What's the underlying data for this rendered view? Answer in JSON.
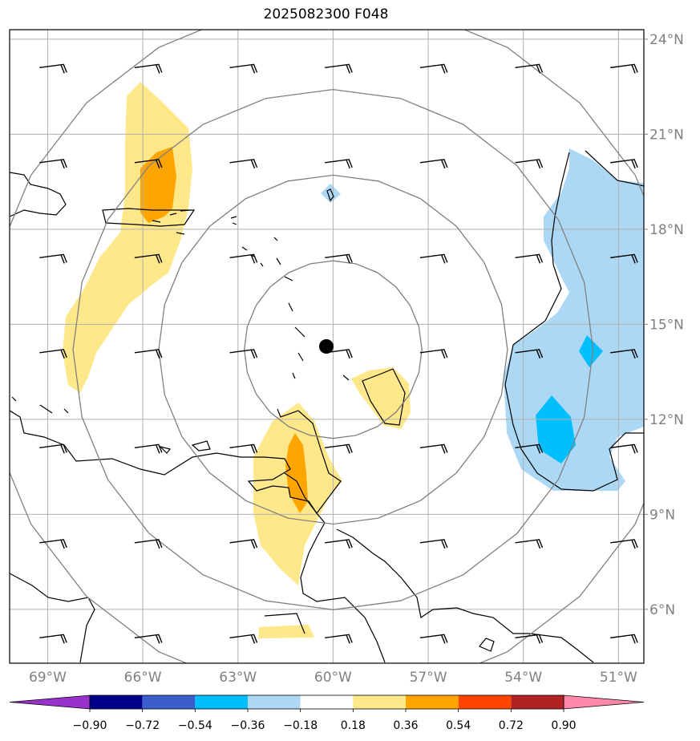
{
  "title": "2025082300 F048",
  "map": {
    "lon_range": [
      -70.2,
      -50.2
    ],
    "lat_range": [
      4.3,
      24.3
    ],
    "center": {
      "lon": -60.0,
      "lat": 14.2
    },
    "lon_ticks": [
      {
        "value": -69,
        "label": "69°W"
      },
      {
        "value": -66,
        "label": "66°W"
      },
      {
        "value": -63,
        "label": "63°W"
      },
      {
        "value": -60,
        "label": "60°W"
      },
      {
        "value": -57,
        "label": "57°W"
      },
      {
        "value": -54,
        "label": "54°W"
      },
      {
        "value": -51,
        "label": "51°W"
      }
    ],
    "lat_ticks": [
      {
        "value": 24,
        "label": "24°N"
      },
      {
        "value": 21,
        "label": "21°N"
      },
      {
        "value": 18,
        "label": "18°N"
      },
      {
        "value": 15,
        "label": "15°N"
      },
      {
        "value": 12,
        "label": "12°N"
      },
      {
        "value": 9,
        "label": "9°N"
      },
      {
        "value": 6,
        "label": "6°N"
      }
    ],
    "range_rings": [
      2.8,
      5.5,
      8.2,
      11.0
    ],
    "grid": true,
    "barb_lons": [
      -68.5,
      -65.5,
      -62.5,
      -59.5,
      -56.5,
      -53.5,
      -50.5
    ],
    "barb_lats": [
      23.0,
      20.0,
      17.0,
      14.0,
      11.0,
      8.0,
      5.0
    ]
  },
  "colorbar": {
    "ticks": [
      "−0.90",
      "−0.72",
      "−0.54",
      "−0.36",
      "−0.18",
      "0.18",
      "0.36",
      "0.54",
      "0.72",
      "0.90"
    ],
    "colors": [
      "#9932cc",
      "#00008b",
      "#3a5fcd",
      "#00bfff",
      "#add8f5",
      "#ffffff",
      "#ffe88a",
      "#ffa500",
      "#ff4500",
      "#b22222",
      "#ff88aa"
    ]
  }
}
